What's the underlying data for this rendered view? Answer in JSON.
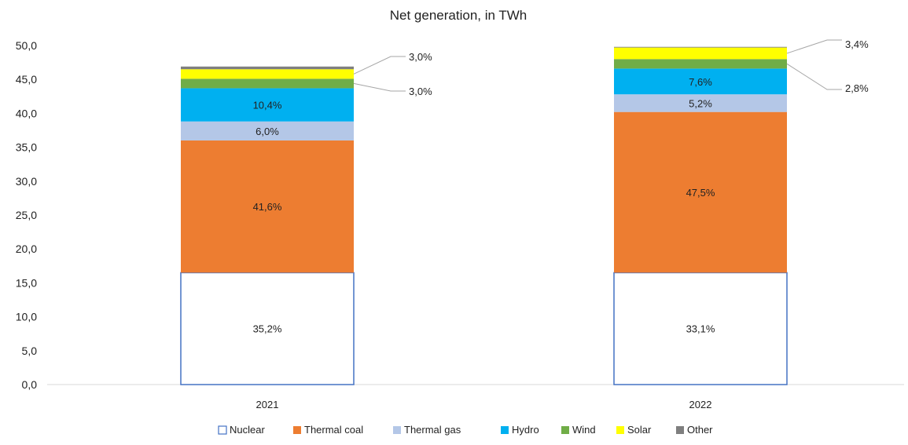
{
  "chart_data": {
    "type": "bar",
    "stacked": true,
    "title": "Net generation, in TWh",
    "xlabel": "",
    "ylabel": "",
    "ylim": [
      0,
      50
    ],
    "y_ticks": [
      "0,0",
      "5,0",
      "10,0",
      "15,0",
      "20,0",
      "25,0",
      "30,0",
      "35,0",
      "40,0",
      "45,0",
      "50,0"
    ],
    "grid": false,
    "legend_position": "bottom",
    "categories": [
      "2021",
      "2022"
    ],
    "series": [
      {
        "name": "Nuclear",
        "color": "#ffffff",
        "stroke": "#4472c4",
        "values": [
          16.5,
          16.5
        ],
        "labels": [
          "35,2%",
          "33,1%"
        ]
      },
      {
        "name": "Thermal coal",
        "color": "#ed7d31",
        "values": [
          19.5,
          23.7
        ],
        "labels": [
          "41,6%",
          "47,5%"
        ]
      },
      {
        "name": "Thermal gas",
        "color": "#b4c7e7",
        "values": [
          2.8,
          2.6
        ],
        "labels": [
          "6,0%",
          "5,2%"
        ]
      },
      {
        "name": "Hydro",
        "color": "#00b0f0",
        "values": [
          4.9,
          3.8
        ],
        "labels": [
          "10,4%",
          "7,6%"
        ]
      },
      {
        "name": "Wind",
        "color": "#70ad47",
        "values": [
          1.4,
          1.4
        ],
        "labels": [
          "3,0%",
          "2,8%"
        ]
      },
      {
        "name": "Solar",
        "color": "#ffff00",
        "values": [
          1.4,
          1.7
        ],
        "labels": [
          "3,0%",
          "3,4%"
        ]
      },
      {
        "name": "Other",
        "color": "#7f7f7f",
        "values": [
          0.4,
          0.1
        ],
        "labels": [
          "",
          ""
        ]
      }
    ]
  }
}
